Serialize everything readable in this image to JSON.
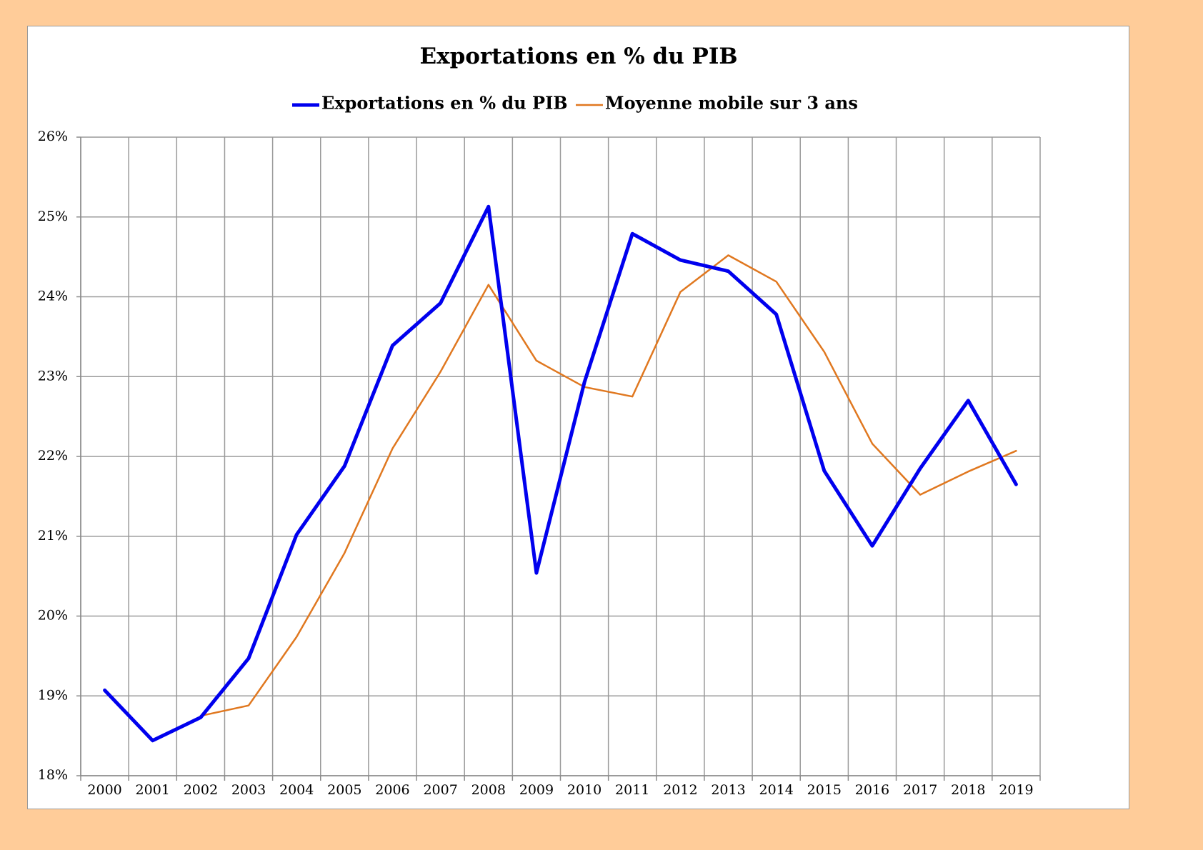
{
  "chart_data": {
    "type": "line",
    "title": "Exportations en % du PIB",
    "xlabel": "",
    "ylabel": "",
    "x": [
      "2000",
      "2001",
      "2002",
      "2003",
      "2004",
      "2005",
      "2006",
      "2007",
      "2008",
      "2009",
      "2010",
      "2011",
      "2012",
      "2013",
      "2014",
      "2015",
      "2016",
      "2017",
      "2018",
      "2019"
    ],
    "ylim": [
      18,
      26
    ],
    "yticks": [
      18,
      19,
      20,
      21,
      22,
      23,
      24,
      25,
      26
    ],
    "ytick_labels": [
      "18%",
      "19%",
      "20%",
      "21%",
      "22%",
      "23%",
      "24%",
      "25%",
      "26%"
    ],
    "grid": true,
    "legend_position": "top",
    "series": [
      {
        "name": "Exportations en % du PIB",
        "color": "#0000EE",
        "values": [
          19.07,
          18.44,
          18.73,
          19.47,
          21.02,
          21.88,
          23.39,
          23.92,
          25.13,
          20.54,
          22.93,
          24.79,
          24.46,
          24.32,
          23.78,
          21.82,
          20.88,
          21.85,
          22.7,
          21.65
        ]
      },
      {
        "name": "Moyenne mobile sur 3 ans",
        "color": "#E07820",
        "values": [
          null,
          null,
          18.75,
          18.88,
          19.74,
          20.79,
          22.1,
          23.06,
          24.15,
          23.2,
          22.87,
          22.75,
          24.06,
          24.52,
          24.19,
          23.31,
          22.16,
          21.52,
          21.81,
          22.07
        ]
      }
    ]
  }
}
